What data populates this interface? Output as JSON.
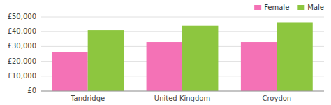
{
  "chart_data": {
    "type": "bar",
    "categories": [
      "Tandridge",
      "United Kingdom",
      "Croydon"
    ],
    "series": [
      {
        "name": "Female",
        "color": "#f472b6",
        "values": [
          26000,
          33000,
          33000
        ]
      },
      {
        "name": "Male",
        "color": "#8dc63f",
        "values": [
          41000,
          44000,
          46000
        ]
      }
    ],
    "ylim": [
      0,
      50000
    ],
    "yticks": [
      {
        "value": 0,
        "label": "£0"
      },
      {
        "value": 10000,
        "label": "£10,000"
      },
      {
        "value": 20000,
        "label": "£20,000"
      },
      {
        "value": 30000,
        "label": "£30,000"
      },
      {
        "value": 40000,
        "label": "£40,000"
      },
      {
        "value": 50000,
        "label": "£50,000"
      }
    ],
    "grid": true,
    "legend": "upper right"
  }
}
